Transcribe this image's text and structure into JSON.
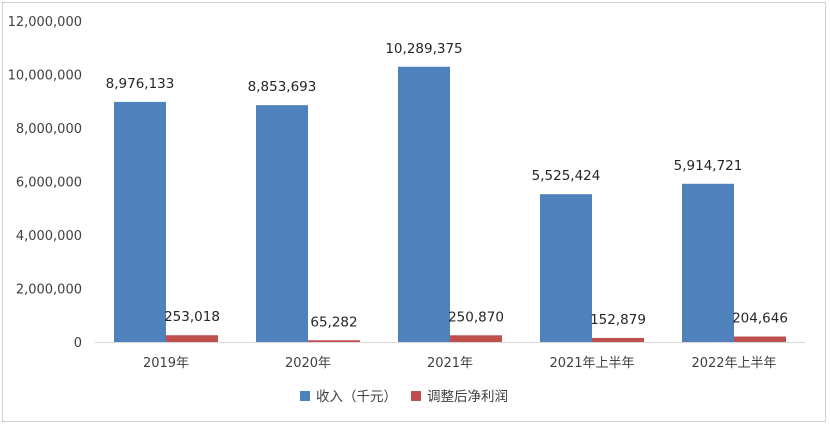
{
  "chart_data": {
    "type": "bar",
    "categories": [
      "2019年",
      "2020年",
      "2021年",
      "2021年上半年",
      "2022年上半年"
    ],
    "series": [
      {
        "name": "收入（千元）",
        "color": "#4f81bd",
        "values": [
          8976133,
          8853693,
          10289375,
          5525424,
          5914721
        ],
        "labels": [
          "8,976,133",
          "8,853,693",
          "10,289,375",
          "5,525,424",
          "5,914,721"
        ]
      },
      {
        "name": "调整后净利润",
        "color": "#c0504d",
        "values": [
          253018,
          65282,
          250870,
          152879,
          204646
        ],
        "labels": [
          "253,018",
          "65,282",
          "250,870",
          "152,879",
          "204,646"
        ]
      }
    ],
    "ylim": [
      0,
      12000000
    ],
    "yticks": [
      0,
      2000000,
      4000000,
      6000000,
      8000000,
      10000000,
      12000000
    ],
    "ytick_labels": [
      "0",
      "2,000,000",
      "4,000,000",
      "6,000,000",
      "8,000,000",
      "10,000,000",
      "12,000,000"
    ],
    "grid": false,
    "legend_position": "bottom"
  }
}
